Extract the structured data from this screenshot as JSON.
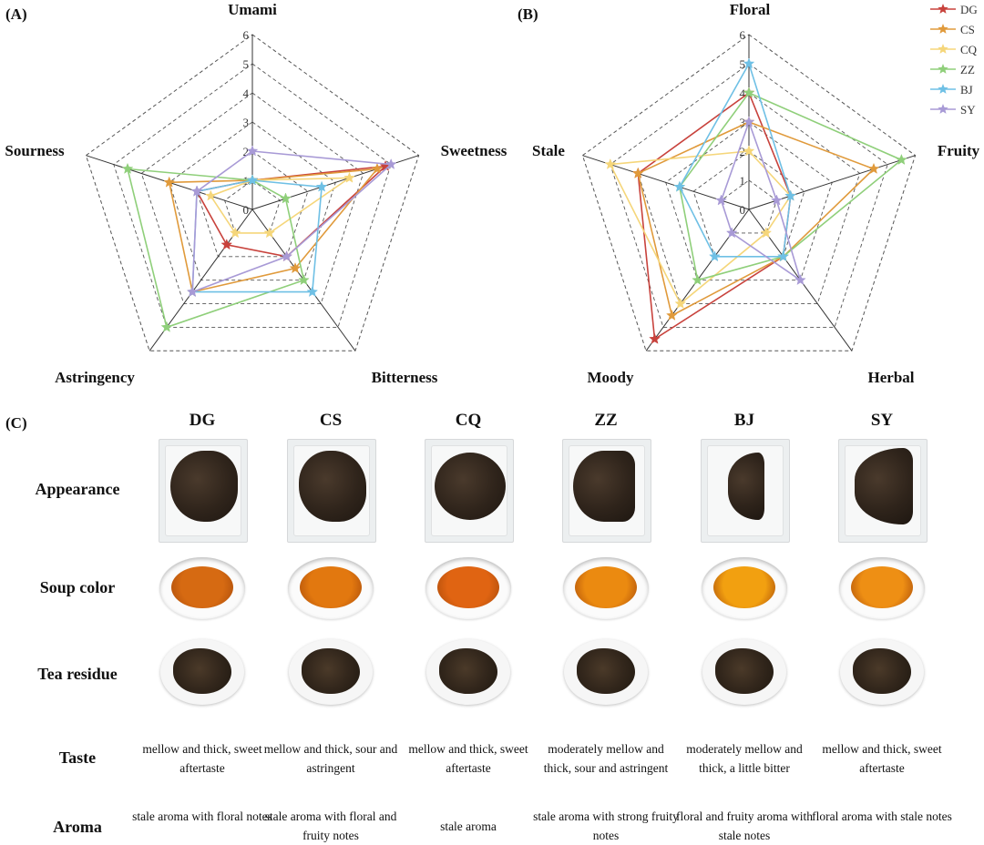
{
  "colors": {
    "DG": "#c8423c",
    "CS": "#e09a3b",
    "CQ": "#f5d67a",
    "ZZ": "#8fcf7a",
    "BJ": "#6fc0e5",
    "SY": "#a89ad6"
  },
  "legend": [
    "DG",
    "CS",
    "CQ",
    "ZZ",
    "BJ",
    "SY"
  ],
  "chart_data": [
    {
      "type": "radar",
      "panel": "(A)",
      "axes": [
        "Umami",
        "Sweetness",
        "Bitterness",
        "Astringency",
        "Sourness"
      ],
      "ticks": [
        "0",
        "1",
        "2",
        "3",
        "4",
        "5",
        "6"
      ],
      "range": [
        0,
        6
      ],
      "series": [
        {
          "name": "DG",
          "values": [
            1,
            4.8,
            2,
            1.5,
            2
          ]
        },
        {
          "name": "CS",
          "values": [
            1,
            4.5,
            2.5,
            3.5,
            3
          ]
        },
        {
          "name": "CQ",
          "values": [
            1,
            3.5,
            1,
            1,
            1.5
          ]
        },
        {
          "name": "ZZ",
          "values": [
            1,
            1.2,
            3,
            5,
            4.5
          ]
        },
        {
          "name": "BJ",
          "values": [
            1,
            2.5,
            3.5,
            3.5,
            2
          ]
        },
        {
          "name": "SY",
          "values": [
            2,
            5,
            2,
            3.5,
            2
          ]
        }
      ]
    },
    {
      "type": "radar",
      "panel": "(B)",
      "axes": [
        "Floral",
        "Fruity",
        "Herbal",
        "Moody",
        "Stale"
      ],
      "ticks": [
        "0",
        "1",
        "2",
        "3",
        "4",
        "5",
        "6"
      ],
      "range": [
        0,
        6
      ],
      "series": [
        {
          "name": "DG",
          "values": [
            4,
            1.5,
            2,
            5.5,
            4
          ]
        },
        {
          "name": "CS",
          "values": [
            3,
            4.5,
            2,
            4.5,
            4
          ]
        },
        {
          "name": "CQ",
          "values": [
            2,
            1.5,
            1,
            4,
            5
          ]
        },
        {
          "name": "ZZ",
          "values": [
            4,
            5.5,
            2,
            3,
            2.5
          ]
        },
        {
          "name": "BJ",
          "values": [
            5,
            1.5,
            2,
            2,
            2.5
          ]
        },
        {
          "name": "SY",
          "values": [
            3,
            1,
            3,
            1,
            1
          ]
        }
      ]
    }
  ],
  "panel_c": {
    "label": "(C)",
    "samples": [
      "DG",
      "CS",
      "CQ",
      "ZZ",
      "BJ",
      "SY"
    ],
    "rows": [
      "Appearance",
      "Soup color",
      "Tea residue",
      "Taste",
      "Aroma"
    ],
    "soup_colors": [
      "#d66a12",
      "#e2780f",
      "#e06412",
      "#eb8a10",
      "#f2a010",
      "#ee8f14"
    ],
    "taste": [
      "mellow and thick, sweet aftertaste",
      "mellow and thick, sour and astringent",
      "mellow and thick, sweet aftertaste",
      "moderately mellow and thick, sour and astringent",
      "moderately mellow and thick, a little bitter",
      "mellow and thick, sweet aftertaste"
    ],
    "aroma": [
      "stale aroma with floral notes",
      "stale aroma with floral and fruity notes",
      "stale aroma",
      "stale aroma with strong fruity notes",
      "floral and fruity aroma with stale notes",
      "floral aroma with stale notes"
    ]
  }
}
